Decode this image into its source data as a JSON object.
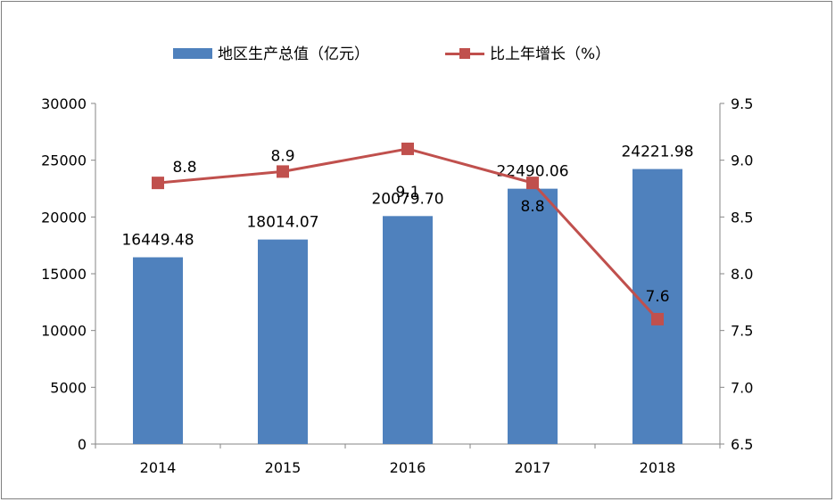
{
  "chart_data": {
    "type": "bar",
    "categories": [
      "2014",
      "2015",
      "2016",
      "2017",
      "2018"
    ],
    "series": [
      {
        "name": "地区生产总值（亿元）",
        "type": "bar",
        "axis": "left",
        "values": [
          16449.48,
          18014.07,
          20079.7,
          22490.06,
          24221.98
        ],
        "labels": [
          "16449.48",
          "18014.07",
          "20079.70",
          "22490.06",
          "24221.98"
        ],
        "color": "#4f81bd"
      },
      {
        "name": "比上年增长（%）",
        "type": "line",
        "axis": "right",
        "values": [
          8.8,
          8.9,
          9.1,
          8.8,
          7.6
        ],
        "labels": [
          "8.8",
          "8.9",
          "9.1",
          "8.8",
          "7.6"
        ],
        "color": "#c0504d"
      }
    ],
    "y_left": {
      "min": 0,
      "max": 30000,
      "ticks": [
        "0",
        "5000",
        "10000",
        "15000",
        "20000",
        "25000",
        "30000"
      ]
    },
    "y_right": {
      "min": 6.5,
      "max": 9.5,
      "ticks": [
        "6.5",
        "7.0",
        "7.5",
        "8.0",
        "8.5",
        "9.0",
        "9.5"
      ]
    },
    "grid": false,
    "legend": "top"
  }
}
